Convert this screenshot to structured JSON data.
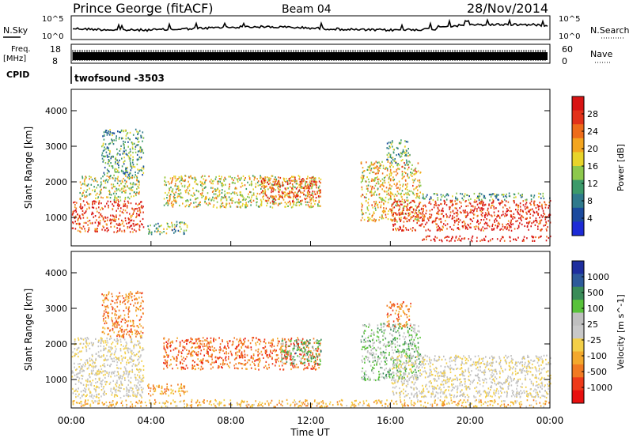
{
  "header": {
    "station": "Prince George (fitACF)",
    "beam": "Beam 04",
    "date": "28/Nov/2014"
  },
  "top_panels": {
    "nsky_label": "N.Sky",
    "nsky_ticks": [
      "10^5",
      "10^0"
    ],
    "nsearch_label": "N.Search",
    "nsearch_ticks": [
      "10^5",
      "10^0"
    ],
    "freq_label": "Freq.",
    "freq_unit": "[MHz]",
    "freq_ticks": [
      "18",
      "8"
    ],
    "nave_label": "Nave",
    "nave_ticks": [
      "60",
      "0"
    ],
    "cpid_label": "CPID",
    "cpid_value": "twofsound -3503"
  },
  "colors": {
    "power_scale": [
      "#1d2bd6",
      "#1b4a9e",
      "#2f7a8c",
      "#3c9a6a",
      "#8dc84c",
      "#e8d42a",
      "#f3a51f",
      "#ee6c1a",
      "#e2321a",
      "#d81414"
    ],
    "velocity_scale": [
      "#e81010",
      "#ee3a1a",
      "#f17a22",
      "#f3a82c",
      "#f3cf48",
      "#c8c8c8",
      "#bfbfbf",
      "#58c23a",
      "#3a8c58",
      "#2e5a9a",
      "#1e2e9e"
    ]
  },
  "chart_data": [
    {
      "type": "heatmap",
      "panel": "power",
      "xlabel": "",
      "ylabel": "Slant Range [km]",
      "x_unit": "hours UT",
      "xlim": [
        0,
        24
      ],
      "ylim": [
        200,
        4600
      ],
      "yticks": [
        "1000",
        "2000",
        "3000",
        "4000"
      ],
      "colorbar_label": "Power [dB]",
      "colorbar_ticks": [
        "4",
        "8",
        "12",
        "16",
        "20",
        "24",
        "28"
      ],
      "regions": [
        {
          "t0": 0.0,
          "t1": 3.6,
          "r0": 600,
          "r1": 1500,
          "level": 0.85
        },
        {
          "t0": 0.4,
          "t1": 3.4,
          "r0": 1500,
          "r1": 2200,
          "level": 0.5
        },
        {
          "t0": 1.5,
          "t1": 3.6,
          "r0": 2200,
          "r1": 3500,
          "level": 0.35
        },
        {
          "t0": 3.8,
          "t1": 5.8,
          "r0": 550,
          "r1": 900,
          "level": 0.4
        },
        {
          "t0": 4.6,
          "t1": 12.5,
          "r0": 1300,
          "r1": 2200,
          "level": 0.55
        },
        {
          "t0": 9.5,
          "t1": 12.5,
          "r0": 1450,
          "r1": 2150,
          "level": 0.8
        },
        {
          "t0": 14.5,
          "t1": 17.5,
          "r0": 900,
          "r1": 2600,
          "level": 0.6
        },
        {
          "t0": 15.8,
          "t1": 17.0,
          "r0": 2500,
          "r1": 3200,
          "level": 0.4
        },
        {
          "t0": 16.0,
          "t1": 24.0,
          "r0": 650,
          "r1": 1500,
          "level": 0.9
        },
        {
          "t0": 17.5,
          "t1": 24.0,
          "r0": 1500,
          "r1": 1700,
          "level": 0.35
        },
        {
          "t0": 17.5,
          "t1": 24.0,
          "r0": 350,
          "r1": 500,
          "level": 0.95
        }
      ]
    },
    {
      "type": "heatmap",
      "panel": "velocity",
      "xlabel": "Time UT",
      "ylabel": "Slant Range [km]",
      "x_unit": "hours UT",
      "xlim": [
        0,
        24
      ],
      "ylim": [
        200,
        4600
      ],
      "xticks": [
        "00:00",
        "04:00",
        "08:00",
        "12:00",
        "16:00",
        "20:00",
        "00:00"
      ],
      "yticks": [
        "1000",
        "2000",
        "3000",
        "4000"
      ],
      "colorbar_label": "Velocity [m s^-1]",
      "colorbar_ticks": [
        "1000",
        "500",
        "100",
        "25",
        "-25",
        "-100",
        "-500",
        "-1000"
      ],
      "regions": [
        {
          "t0": 0.0,
          "t1": 3.6,
          "r0": 500,
          "r1": 2200,
          "level": 0.0
        },
        {
          "t0": 1.5,
          "t1": 3.6,
          "r0": 2200,
          "r1": 3500,
          "level": -0.5
        },
        {
          "t0": 3.8,
          "t1": 5.8,
          "r0": 550,
          "r1": 900,
          "level": -0.4
        },
        {
          "t0": 4.6,
          "t1": 12.5,
          "r0": 1300,
          "r1": 2200,
          "level": -0.6
        },
        {
          "t0": 10.5,
          "t1": 12.5,
          "r0": 1450,
          "r1": 2150,
          "level": 0.4
        },
        {
          "t0": 14.5,
          "t1": 17.5,
          "r0": 1000,
          "r1": 2600,
          "level": 0.3
        },
        {
          "t0": 15.8,
          "t1": 17.0,
          "r0": 2500,
          "r1": 3200,
          "level": -0.5
        },
        {
          "t0": 16.0,
          "t1": 24.0,
          "r0": 500,
          "r1": 1700,
          "level": 0.0
        },
        {
          "t0": 0.0,
          "t1": 24.0,
          "r0": 250,
          "r1": 450,
          "level": -0.3
        }
      ]
    }
  ]
}
